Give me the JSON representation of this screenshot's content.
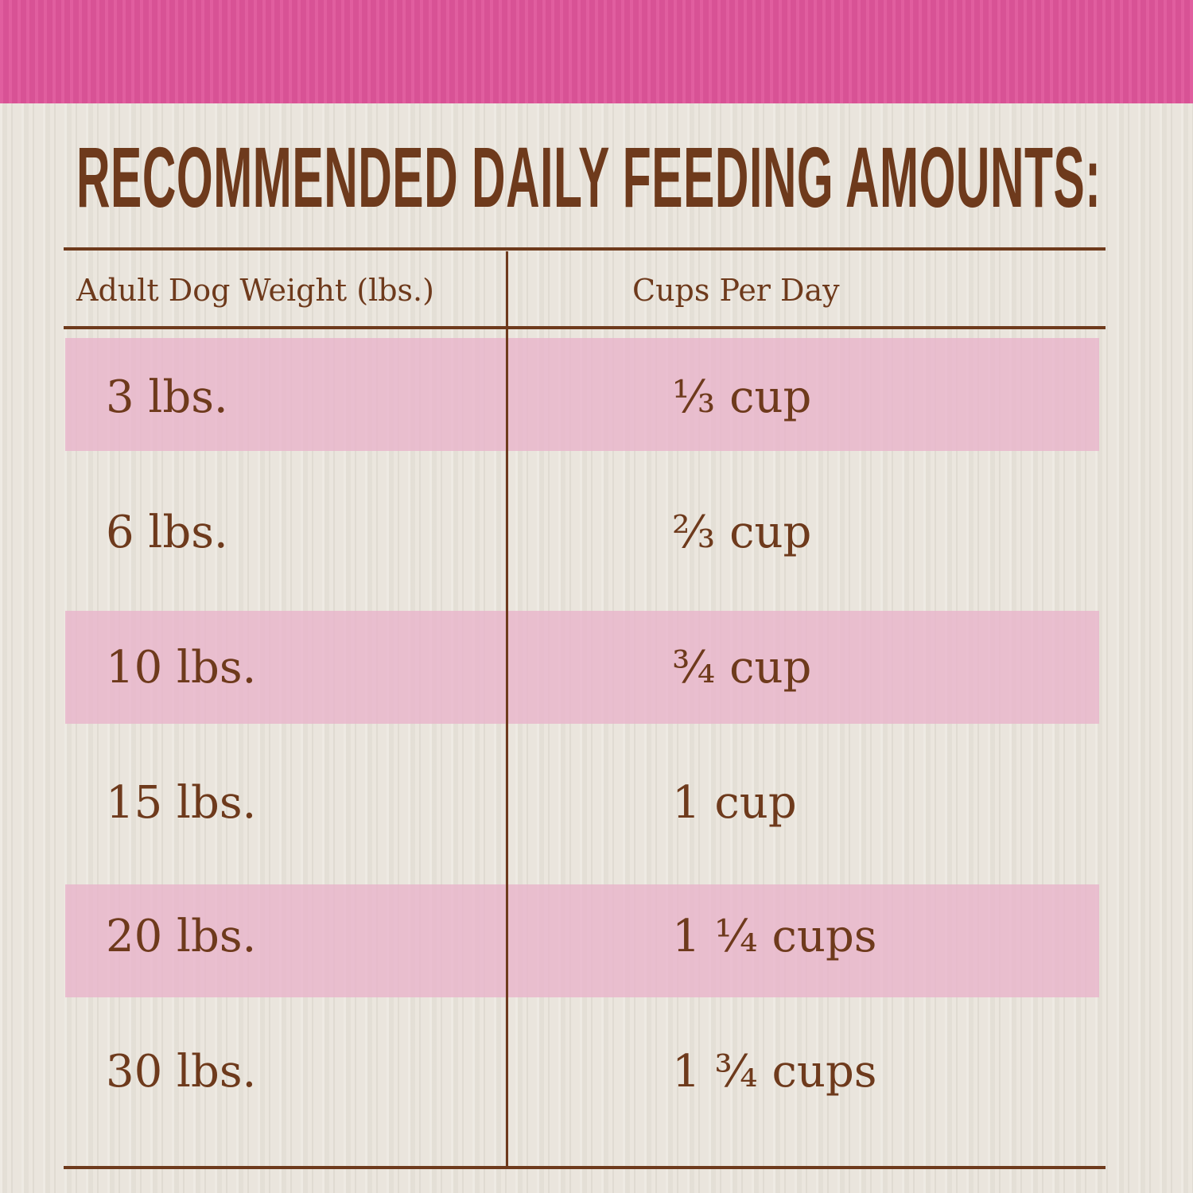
{
  "title": "RECOMMENDED DAILY FEEDING AMOUNTS:",
  "colors": {
    "band": "#df559a",
    "text": "#6e3a1c",
    "stripe": "#e8b4cb",
    "background": "#e8e3da"
  },
  "table": {
    "headers": [
      "Adult Dog Weight (lbs.)",
      "Cups Per Day"
    ],
    "rows": [
      {
        "weight": "3 lbs.",
        "cups": "⅓ cup"
      },
      {
        "weight": "6 lbs.",
        "cups": "⅔ cup"
      },
      {
        "weight": "10 lbs.",
        "cups": "¾ cup"
      },
      {
        "weight": "15 lbs.",
        "cups": "1 cup"
      },
      {
        "weight": "20 lbs.",
        "cups": "1 ¼ cups"
      },
      {
        "weight": "30 lbs.",
        "cups": "1 ¾ cups"
      }
    ]
  }
}
